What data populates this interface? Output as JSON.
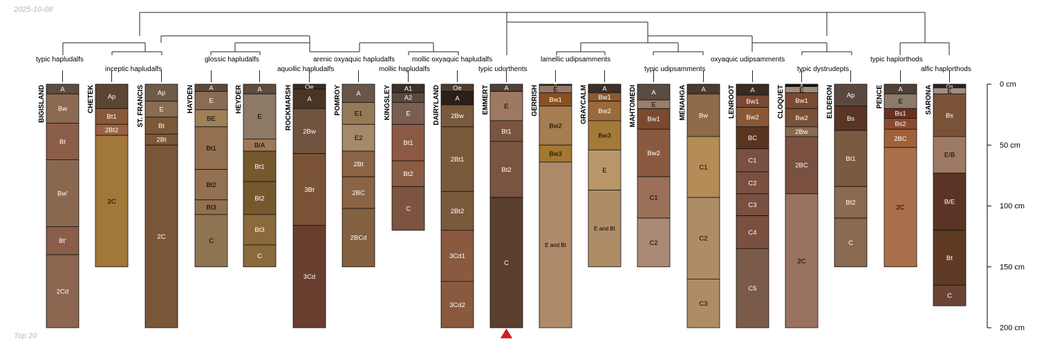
{
  "header": {
    "date": "2025-10-08"
  },
  "footer": {
    "label": "Top 20"
  },
  "diagram": {
    "type": "soil-profile-sketches-with-dendrogram",
    "depth_axis": {
      "unit": "cm",
      "min": 0,
      "max": 200,
      "ticks": [
        {
          "value": 0,
          "label": "0 cm"
        },
        {
          "value": 50,
          "label": "50 cm"
        },
        {
          "value": 100,
          "label": "100 cm"
        },
        {
          "value": 150,
          "label": "150 cm"
        },
        {
          "value": 200,
          "label": "200 cm"
        }
      ]
    },
    "marker": {
      "profile": "EMMERT",
      "color": "#e41a1c",
      "shape": "triangle"
    },
    "taxa": [
      "typic hapludalfs",
      "inceptic hapludalfs",
      "glossic hapludalfs",
      "aquollic hapludalfs",
      "arenic oxyaquic hapludalfs",
      "mollic hapludalfs",
      "mollic oxyaquic hapludalfs",
      "typic udorthents",
      "lamellic udipsamments",
      "typic udipsamments",
      "oxyaquic udipsamments",
      "typic dystrudepts",
      "typic haplorthods",
      "alfic haplorthods"
    ],
    "profiles": [
      {
        "name": "BIGISLAND",
        "horizons": [
          {
            "name": "A",
            "top": 0,
            "bottom": 8,
            "color": "#5e4c3e"
          },
          {
            "name": "Bw",
            "top": 8,
            "bottom": 32,
            "color": "#8c6a52"
          },
          {
            "name": "Bt",
            "top": 32,
            "bottom": 62,
            "color": "#8a5e48"
          },
          {
            "name": "Bw'",
            "top": 62,
            "bottom": 117,
            "color": "#8a6850"
          },
          {
            "name": "Bt'",
            "top": 117,
            "bottom": 140,
            "color": "#8a5e48"
          },
          {
            "name": "2Cd",
            "top": 140,
            "bottom": 200,
            "color": "#8c6650"
          }
        ]
      },
      {
        "name": "CHETEK",
        "horizons": [
          {
            "name": "Ap",
            "top": 0,
            "bottom": 20,
            "color": "#5a4632"
          },
          {
            "name": "Bt1",
            "top": 20,
            "bottom": 33,
            "color": "#8a5838"
          },
          {
            "name": "2Bt2",
            "top": 33,
            "bottom": 42,
            "color": "#9a6244"
          },
          {
            "name": "2C",
            "top": 42,
            "bottom": 150,
            "color": "#a07838"
          }
        ]
      },
      {
        "name": "ST. FRANCIS",
        "horizons": [
          {
            "name": "Ap",
            "top": 0,
            "bottom": 14,
            "color": "#6e5a48"
          },
          {
            "name": "E",
            "top": 14,
            "bottom": 27,
            "color": "#8a6c50"
          },
          {
            "name": "Bt",
            "top": 27,
            "bottom": 41,
            "color": "#7a5838"
          },
          {
            "name": "2Bt",
            "top": 41,
            "bottom": 50,
            "color": "#7c5638"
          },
          {
            "name": "2C",
            "top": 50,
            "bottom": 200,
            "color": "#7a5638"
          }
        ]
      },
      {
        "name": "HAYDEN",
        "horizons": [
          {
            "name": "A",
            "top": 0,
            "bottom": 6,
            "color": "#5a4a3e"
          },
          {
            "name": "E",
            "top": 6,
            "bottom": 21,
            "color": "#8a6c55"
          },
          {
            "name": "BE",
            "top": 21,
            "bottom": 35,
            "color": "#a08058"
          },
          {
            "name": "Bt1",
            "top": 35,
            "bottom": 70,
            "color": "#927050"
          },
          {
            "name": "Bt2",
            "top": 70,
            "bottom": 95,
            "color": "#927050"
          },
          {
            "name": "Bt3",
            "top": 95,
            "bottom": 107,
            "color": "#927050"
          },
          {
            "name": "C",
            "top": 107,
            "bottom": 150,
            "color": "#8e7450"
          }
        ]
      },
      {
        "name": "HEYDER",
        "horizons": [
          {
            "name": "A",
            "top": 0,
            "bottom": 8,
            "color": "#5e4c3e"
          },
          {
            "name": "E",
            "top": 8,
            "bottom": 45,
            "color": "#8e7866"
          },
          {
            "name": "B/A",
            "top": 45,
            "bottom": 55,
            "color": "#a07858"
          },
          {
            "name": "Bt1",
            "top": 55,
            "bottom": 80,
            "color": "#76582e"
          },
          {
            "name": "Bt2",
            "top": 80,
            "bottom": 107,
            "color": "#76582e"
          },
          {
            "name": "Bt3",
            "top": 107,
            "bottom": 132,
            "color": "#8a6a3c"
          },
          {
            "name": "C",
            "top": 132,
            "bottom": 150,
            "color": "#8a6a3c"
          }
        ]
      },
      {
        "name": "ROCKMARSH",
        "horizons": [
          {
            "name": "Oe",
            "top": 0,
            "bottom": 4,
            "color": "#3e2a20"
          },
          {
            "name": "A",
            "top": 4,
            "bottom": 20,
            "color": "#4a3426"
          },
          {
            "name": "2Bw",
            "top": 20,
            "bottom": 57,
            "color": "#705440"
          },
          {
            "name": "3Bt",
            "top": 57,
            "bottom": 116,
            "color": "#7a5238"
          },
          {
            "name": "3Cd",
            "top": 116,
            "bottom": 200,
            "color": "#6a3e2e"
          }
        ]
      },
      {
        "name": "POMROY",
        "horizons": [
          {
            "name": "A",
            "top": 0,
            "bottom": 15,
            "color": "#6a5648"
          },
          {
            "name": "E1",
            "top": 15,
            "bottom": 33,
            "color": "#967a58"
          },
          {
            "name": "E2",
            "top": 33,
            "bottom": 55,
            "color": "#a4896a"
          },
          {
            "name": "2Bt",
            "top": 55,
            "bottom": 76,
            "color": "#8a6444"
          },
          {
            "name": "2BC",
            "top": 76,
            "bottom": 102,
            "color": "#8a6444"
          },
          {
            "name": "2BCd",
            "top": 102,
            "bottom": 150,
            "color": "#826040"
          }
        ]
      },
      {
        "name": "KINGSLEY",
        "horizons": [
          {
            "name": "A1",
            "top": 0,
            "bottom": 7,
            "color": "#3e3028"
          },
          {
            "name": "A2",
            "top": 7,
            "bottom": 15,
            "color": "#5a4a3e"
          },
          {
            "name": "E",
            "top": 15,
            "bottom": 33,
            "color": "#7a5e50"
          },
          {
            "name": "Bt1",
            "top": 33,
            "bottom": 63,
            "color": "#8c5a44"
          },
          {
            "name": "Bt2",
            "top": 63,
            "bottom": 84,
            "color": "#8a5c44"
          },
          {
            "name": "C",
            "top": 84,
            "bottom": 120,
            "color": "#7c5440"
          }
        ]
      },
      {
        "name": "DAIRYLAND",
        "horizons": [
          {
            "name": "Oe",
            "top": 0,
            "bottom": 6,
            "color": "#4e3c30"
          },
          {
            "name": "A",
            "top": 6,
            "bottom": 17,
            "color": "#2a2018"
          },
          {
            "name": "2Bw",
            "top": 17,
            "bottom": 35,
            "color": "#7a5a3c"
          },
          {
            "name": "2Bt1",
            "top": 35,
            "bottom": 88,
            "color": "#7a5a3c"
          },
          {
            "name": "2Bt2",
            "top": 88,
            "bottom": 120,
            "color": "#7a5a3c"
          },
          {
            "name": "3Cd1",
            "top": 120,
            "bottom": 162,
            "color": "#8a5a40"
          },
          {
            "name": "3Cd2",
            "top": 162,
            "bottom": 200,
            "color": "#8a5a40"
          }
        ]
      },
      {
        "name": "EMMERT",
        "horizons": [
          {
            "name": "A",
            "top": 0,
            "bottom": 6,
            "color": "#4e4036"
          },
          {
            "name": "E",
            "top": 6,
            "bottom": 30,
            "color": "#9e7860"
          },
          {
            "name": "Bt1",
            "top": 30,
            "bottom": 47,
            "color": "#7a5440"
          },
          {
            "name": "Bt2",
            "top": 47,
            "bottom": 93,
            "color": "#7a5440"
          },
          {
            "name": "C",
            "top": 93,
            "bottom": 200,
            "color": "#5a3e2e"
          }
        ]
      },
      {
        "name": "GERRISH",
        "horizons": [
          {
            "name": "A",
            "top": 0,
            "bottom": 1,
            "color": "#3e3028"
          },
          {
            "name": "E",
            "top": 1,
            "bottom": 7,
            "color": "#927868"
          },
          {
            "name": "Bw1",
            "top": 7,
            "bottom": 18,
            "color": "#8a5020"
          },
          {
            "name": "Bw2",
            "top": 18,
            "bottom": 50,
            "color": "#a47e50"
          },
          {
            "name": "Bw3",
            "top": 50,
            "bottom": 64,
            "color": "#a47830"
          },
          {
            "name": "E and Bt",
            "top": 64,
            "bottom": 200,
            "color": "#ae8a68"
          }
        ]
      },
      {
        "name": "GRAYCALM",
        "horizons": [
          {
            "name": "A",
            "top": 0,
            "bottom": 7,
            "color": "#3e3028"
          },
          {
            "name": "Bw1",
            "top": 7,
            "bottom": 14,
            "color": "#8a5a32"
          },
          {
            "name": "Bw2",
            "top": 14,
            "bottom": 30,
            "color": "#9a6a3a"
          },
          {
            "name": "Bw3",
            "top": 30,
            "bottom": 54,
            "color": "#a47a3a"
          },
          {
            "name": "E",
            "top": 54,
            "bottom": 87,
            "color": "#b8966a"
          },
          {
            "name": "E and Bt",
            "top": 87,
            "bottom": 150,
            "color": "#ae8c66"
          }
        ]
      },
      {
        "name": "MAHTOMEDI",
        "horizons": [
          {
            "name": "A",
            "top": 0,
            "bottom": 13,
            "color": "#5a4c40"
          },
          {
            "name": "E",
            "top": 13,
            "bottom": 20,
            "color": "#9a7e6a"
          },
          {
            "name": "Bw1",
            "top": 20,
            "bottom": 37,
            "color": "#7a4a30"
          },
          {
            "name": "Bw2",
            "top": 37,
            "bottom": 76,
            "color": "#8a5a40"
          },
          {
            "name": "C1",
            "top": 76,
            "bottom": 110,
            "color": "#9a7058"
          },
          {
            "name": "C2",
            "top": 110,
            "bottom": 150,
            "color": "#aa8a74"
          }
        ]
      },
      {
        "name": "MENAHGA",
        "horizons": [
          {
            "name": "A",
            "top": 0,
            "bottom": 8,
            "color": "#4a3a30"
          },
          {
            "name": "Bw",
            "top": 8,
            "bottom": 43,
            "color": "#8e6a48"
          },
          {
            "name": "C1",
            "top": 43,
            "bottom": 93,
            "color": "#b48c58"
          },
          {
            "name": "C2",
            "top": 93,
            "bottom": 160,
            "color": "#ae8c66"
          },
          {
            "name": "C3",
            "top": 160,
            "bottom": 200,
            "color": "#ae8c66"
          }
        ]
      },
      {
        "name": "LENROOT",
        "horizons": [
          {
            "name": "A",
            "top": 0,
            "bottom": 9,
            "color": "#3a2c22"
          },
          {
            "name": "Bw1",
            "top": 9,
            "bottom": 19,
            "color": "#7a4a32"
          },
          {
            "name": "Bw2",
            "top": 19,
            "bottom": 35,
            "color": "#8a5838"
          },
          {
            "name": "BC",
            "top": 35,
            "bottom": 53,
            "color": "#5a3420"
          },
          {
            "name": "C1",
            "top": 53,
            "bottom": 72,
            "color": "#7a5040"
          },
          {
            "name": "C2",
            "top": 72,
            "bottom": 90,
            "color": "#7a5040"
          },
          {
            "name": "C3",
            "top": 90,
            "bottom": 108,
            "color": "#7a5040"
          },
          {
            "name": "C4",
            "top": 108,
            "bottom": 135,
            "color": "#7a5040"
          },
          {
            "name": "C5",
            "top": 135,
            "bottom": 200,
            "color": "#7a5a48"
          }
        ]
      },
      {
        "name": "CLOQUET",
        "horizons": [
          {
            "name": "A",
            "top": 0,
            "bottom": 2,
            "color": "#1a1210"
          },
          {
            "name": "E",
            "top": 2,
            "bottom": 7,
            "color": "#a08a7a"
          },
          {
            "name": "Bw1",
            "top": 7,
            "bottom": 20,
            "color": "#7a4a30"
          },
          {
            "name": "Bw2",
            "top": 20,
            "bottom": 35,
            "color": "#7a5038"
          },
          {
            "name": "2Bw",
            "top": 35,
            "bottom": 43,
            "color": "#8a6a50"
          },
          {
            "name": "2BC",
            "top": 43,
            "bottom": 90,
            "color": "#7a5040"
          },
          {
            "name": "2C",
            "top": 90,
            "bottom": 200,
            "color": "#9a7260"
          }
        ]
      },
      {
        "name": "ELDERON",
        "horizons": [
          {
            "name": "Ap",
            "top": 0,
            "bottom": 18,
            "color": "#5a4840"
          },
          {
            "name": "Bs",
            "top": 18,
            "bottom": 38,
            "color": "#5a3424"
          },
          {
            "name": "Bt1",
            "top": 38,
            "bottom": 84,
            "color": "#7a5a40"
          },
          {
            "name": "Bt2",
            "top": 84,
            "bottom": 110,
            "color": "#8a6a50"
          },
          {
            "name": "C",
            "top": 110,
            "bottom": 150,
            "color": "#8a6a50"
          }
        ]
      },
      {
        "name": "PENCE",
        "horizons": [
          {
            "name": "A",
            "top": 0,
            "bottom": 8,
            "color": "#4e4036"
          },
          {
            "name": "E",
            "top": 8,
            "bottom": 20,
            "color": "#8a7a6c"
          },
          {
            "name": "Bs1",
            "top": 20,
            "bottom": 28,
            "color": "#6a3020"
          },
          {
            "name": "Bs2",
            "top": 28,
            "bottom": 37,
            "color": "#8a4a30"
          },
          {
            "name": "2BC",
            "top": 37,
            "bottom": 52,
            "color": "#a0603a"
          },
          {
            "name": "2C",
            "top": 52,
            "bottom": 150,
            "color": "#a8704a"
          }
        ]
      },
      {
        "name": "SARONA",
        "horizons": [
          {
            "name": "Oa",
            "top": 0,
            "bottom": 3,
            "color": "#2e2220"
          },
          {
            "name": "E",
            "top": 3,
            "bottom": 8,
            "color": "#a08e84"
          },
          {
            "name": "Bs",
            "top": 8,
            "bottom": 43,
            "color": "#7a5238"
          },
          {
            "name": "E/B",
            "top": 43,
            "bottom": 73,
            "color": "#9e7a64"
          },
          {
            "name": "B/E",
            "top": 73,
            "bottom": 120,
            "color": "#5a3424"
          },
          {
            "name": "Bt",
            "top": 120,
            "bottom": 165,
            "color": "#5e3a24"
          },
          {
            "name": "C",
            "top": 165,
            "bottom": 182,
            "color": "#6a4434"
          }
        ]
      }
    ]
  }
}
